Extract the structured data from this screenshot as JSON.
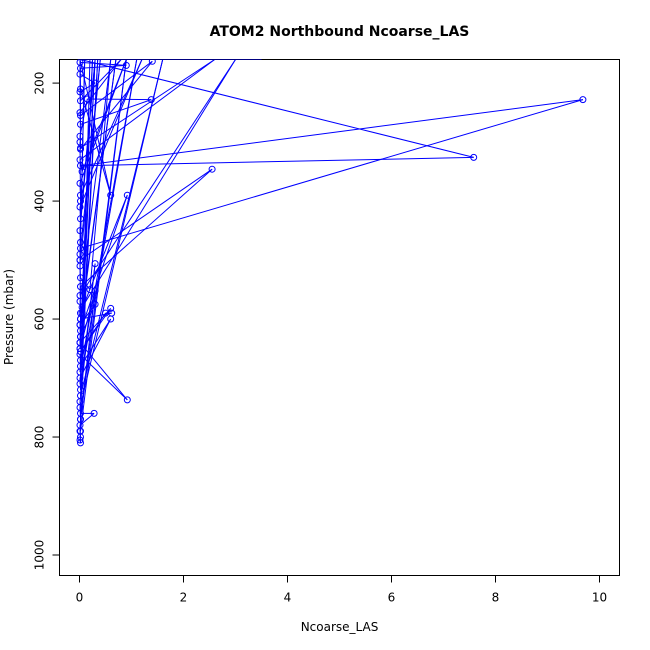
{
  "chart_data": {
    "type": "line",
    "title": "ATOM2 Northbound Ncoarse_LAS",
    "xlabel": "Ncoarse_LAS",
    "ylabel": "Pressure (mbar)",
    "xlim": [
      0,
      10
    ],
    "ylim": [
      1000,
      160
    ],
    "y_axis_reversed": true,
    "x_ticks": [
      0,
      2,
      4,
      6,
      8,
      10
    ],
    "x_tick_labels": [
      "0",
      "2",
      "4",
      "6",
      "8",
      "10"
    ],
    "y_ticks": [
      200,
      400,
      600,
      800,
      1000
    ],
    "y_tick_labels": [
      "200",
      "400",
      "600",
      "800",
      "1000"
    ],
    "marker": "open-circle",
    "line_style": "solid",
    "grid": false,
    "legend": "none",
    "colors": {
      "series": "#0000ff",
      "axis": "#000000",
      "background": "#ffffff"
    },
    "series": [
      {
        "x": [
          0.2,
          0.02,
          0.9,
          0.02,
          0.01,
          1.6,
          0.02,
          0.35,
          0.01,
          1.1,
          0.01,
          0.02,
          0.3,
          0.01,
          0.25,
          0.02,
          0.01,
          0.7,
          0.05,
          0.01,
          0.6,
          0.2,
          0.02,
          0.01,
          0.4,
          0.01,
          0.1,
          0.02,
          0.01,
          0.3,
          0.02,
          0.01,
          1.2,
          0.02,
          0.01,
          0.9,
          0.05,
          0.01,
          2.6,
          0.02,
          0.01,
          0.15,
          1.38,
          0.02,
          0.01,
          0.8,
          0.02,
          0.01,
          0.3,
          0.01,
          0.02,
          0.9,
          0.01,
          0.02,
          1.4,
          0.02,
          0.01,
          0.6,
          0.02,
          0.01,
          3.5,
          0.02,
          7.58,
          0.02,
          9.68,
          0.02,
          0.01,
          2.55,
          0.02,
          0.01,
          3.0,
          0.05,
          0.02,
          0.92,
          0.02,
          0.01,
          0.6,
          0.02,
          0.5,
          0.62,
          0.02,
          0.01,
          0.3,
          0.02,
          0.01,
          0.92,
          0.01,
          0.02,
          0.6,
          0.01,
          0.02,
          0.3,
          0.01,
          0.02,
          0.28,
          0.01,
          0.02,
          0.01,
          0.02,
          0.01,
          0.02,
          0.3,
          0.01,
          0.02,
          0.01,
          0.02,
          0.01
        ],
        "y": [
          160,
          790,
          160,
          770,
          750,
          160,
          730,
          160,
          710,
          160,
          690,
          670,
          160,
          650,
          160,
          630,
          610,
          160,
          590,
          570,
          160,
          550,
          530,
          510,
          160,
          490,
          160,
          470,
          450,
          160,
          430,
          410,
          160,
          390,
          370,
          160,
          350,
          330,
          160,
          310,
          290,
          227,
          228,
          270,
          250,
          160,
          230,
          215,
          200,
          185,
          175,
          170,
          165,
          255,
          163,
          312,
          160,
          390,
          210,
          160,
          160,
          160,
          326,
          340,
          228,
          480,
          500,
          346,
          545,
          560,
          160,
          580,
          590,
          390,
          620,
          640,
          582,
          655,
          590,
          590,
          600,
          610,
          575,
          630,
          640,
          737,
          660,
          680,
          600,
          700,
          720,
          506,
          740,
          760,
          760,
          780,
          800,
          805,
          810,
          790,
          770,
          552,
          650,
          600,
          500,
          400,
          300
        ]
      }
    ]
  }
}
